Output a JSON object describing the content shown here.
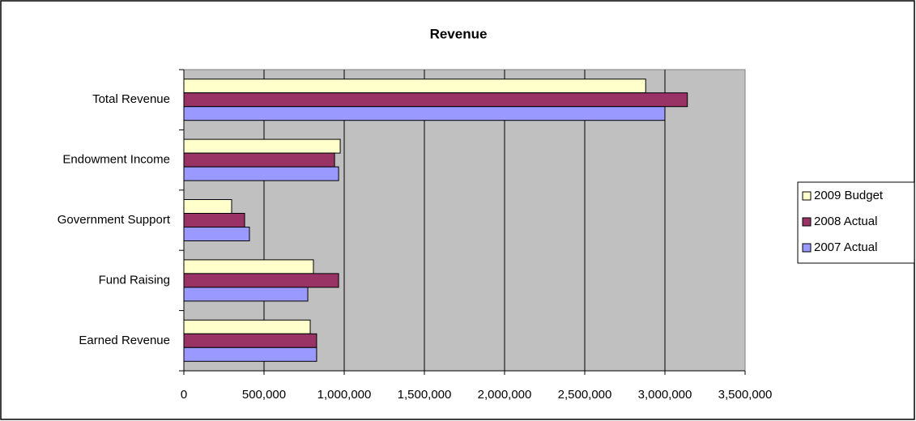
{
  "chart_data": {
    "type": "barh",
    "title": "Revenue",
    "categories": [
      "Total Revenue",
      "Endowment Income",
      "Government Support",
      "Fund Raising",
      "Earned Revenue"
    ],
    "series": [
      {
        "name": "2009 Budget",
        "color": "#ffffcc",
        "values": [
          2880000,
          975000,
          298000,
          808000,
          788000
        ]
      },
      {
        "name": "2008 Actual",
        "color": "#993366",
        "values": [
          3140000,
          940000,
          379000,
          965000,
          828000
        ]
      },
      {
        "name": "2007 Actual",
        "color": "#9999ff",
        "values": [
          3000000,
          965000,
          409000,
          773000,
          828000
        ]
      }
    ],
    "xlim": [
      0,
      3500000
    ],
    "xticks": [
      0,
      {
        "value": 500000,
        "label": "500,000"
      },
      {
        "value": 1000000,
        "label": "1,000,000"
      },
      {
        "value": 1500000,
        "label": "1,500,000"
      },
      {
        "value": 2000000,
        "label": "2,000,000"
      },
      {
        "value": 2500000,
        "label": "2,500,000"
      },
      {
        "value": 3000000,
        "label": "3,000,000"
      },
      {
        "value": 3500000,
        "label": "3,500,000"
      }
    ],
    "grid": true,
    "legend": "right"
  }
}
